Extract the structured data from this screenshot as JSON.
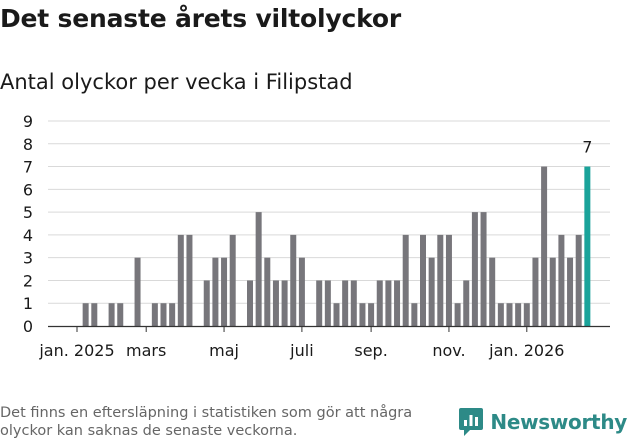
{
  "header": {
    "title": "Det senaste årets viltolyckor",
    "subtitle": "Antal olyckor per vecka i Filipstad"
  },
  "footer": {
    "note": "Det finns en eftersläpning i statistiken som gör att några olyckor kan saknas de senaste veckorna.",
    "brand": "Newsworthy"
  },
  "colors": {
    "bar": "#77767b",
    "highlight": "#1aa39a",
    "grid": "#d9d9d9",
    "axis": "#333333",
    "brand": "#2d8a87"
  },
  "chart_data": {
    "type": "bar",
    "title": "Antal olyckor per vecka i Filipstad",
    "xlabel": "",
    "ylabel": "",
    "ylim": [
      0,
      9
    ],
    "yticks": [
      0,
      1,
      2,
      3,
      4,
      5,
      6,
      7,
      8,
      9
    ],
    "grid": true,
    "xtick_labels": [
      {
        "label": "jan. 2025",
        "index": 0.5
      },
      {
        "label": "mars",
        "index": 8.5
      },
      {
        "label": "maj",
        "index": 17.5
      },
      {
        "label": "juli",
        "index": 26.5
      },
      {
        "label": "sep.",
        "index": 34.5
      },
      {
        "label": "nov.",
        "index": 43.5
      },
      {
        "label": "jan. 2026",
        "index": 52.5
      }
    ],
    "values": [
      0,
      1,
      1,
      0,
      1,
      1,
      0,
      3,
      0,
      1,
      1,
      1,
      4,
      4,
      0,
      2,
      3,
      3,
      4,
      0,
      2,
      5,
      3,
      2,
      2,
      4,
      3,
      0,
      2,
      2,
      1,
      2,
      2,
      1,
      1,
      2,
      2,
      2,
      4,
      1,
      4,
      3,
      4,
      4,
      1,
      2,
      5,
      5,
      3,
      1,
      1,
      1,
      1,
      3,
      7,
      3,
      4,
      3,
      4,
      7
    ],
    "highlight_index": 59,
    "highlight_label": "7"
  }
}
